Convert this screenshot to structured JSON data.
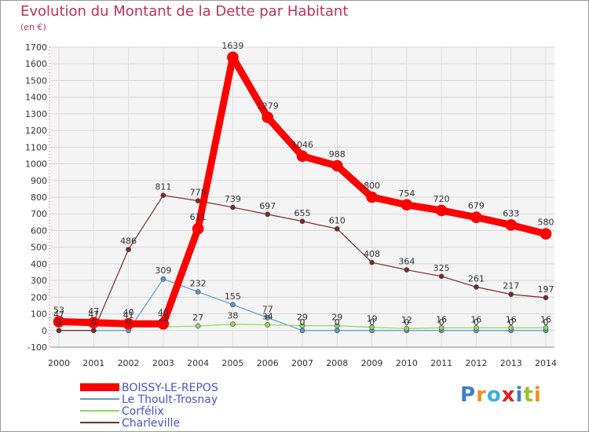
{
  "title": "Evolution du Montant de la Dette par Habitant",
  "subtitle": "(en €)",
  "logo": {
    "letters": [
      "P",
      "r",
      "o",
      "x",
      "i",
      "t",
      "i"
    ],
    "colors": [
      "#3a7fd0",
      "#f09020",
      "#3ab0e0",
      "#e02020",
      "#3a7fd0",
      "#a0c030",
      "#f09020"
    ]
  },
  "chart_data": {
    "type": "line",
    "title": "Evolution du Montant de la Dette par Habitant",
    "ylabel": "(en €)",
    "xlabel": "",
    "ylim": [
      -100,
      1700
    ],
    "y_ticks": [
      -100,
      0,
      100,
      200,
      300,
      400,
      500,
      600,
      700,
      800,
      900,
      1000,
      1100,
      1200,
      1300,
      1400,
      1500,
      1600,
      1700
    ],
    "grid": true,
    "legend_position": "bottom-left",
    "categories": [
      "2000",
      "2001",
      "2002",
      "2003",
      "2004",
      "2005",
      "2006",
      "2007",
      "2008",
      "2009",
      "2010",
      "2011",
      "2012",
      "2013",
      "2014"
    ],
    "series": [
      {
        "name": "Le Thoult-Trosnay",
        "color": "#5a9ad0",
        "width": 1.2,
        "marker_r": 3,
        "values": [
          0,
          0,
          0,
          309,
          232,
          155,
          77,
          0,
          0,
          0,
          0,
          0,
          0,
          0,
          0
        ],
        "labels": [
          "0",
          "0",
          "0",
          "309",
          "232",
          "155",
          "77",
          "0",
          "0",
          "0",
          "0",
          "0",
          "0",
          "0",
          "0"
        ]
      },
      {
        "name": "Corfélix",
        "color": "#8fd95a",
        "width": 1.2,
        "marker_r": 3,
        "values": [
          47,
          47,
          41,
          22,
          27,
          38,
          34,
          29,
          29,
          19,
          12,
          16,
          16,
          16,
          16
        ],
        "labels": [
          "47",
          "47",
          "41",
          "22",
          "27",
          "38",
          "34",
          "29",
          "29",
          "19",
          "12",
          "16",
          "16",
          "16",
          "16"
        ]
      },
      {
        "name": "Charleville",
        "color": "#7a2a2a",
        "width": 1.2,
        "marker_r": 3,
        "values": [
          0,
          0,
          486,
          811,
          778,
          739,
          697,
          655,
          610,
          408,
          364,
          325,
          261,
          217,
          197
        ],
        "labels": [
          "0",
          "0",
          "486",
          "811",
          "778",
          "739",
          "697",
          "655",
          "610",
          "408",
          "364",
          "325",
          "261",
          "217",
          "197"
        ]
      },
      {
        "name": "BOISSY-LE-REPOS",
        "color": "#ff0000",
        "width": 9,
        "marker_r": 7,
        "values": [
          53,
          47,
          40,
          40,
          611,
          1639,
          1279,
          1046,
          988,
          800,
          754,
          720,
          679,
          633,
          580
        ],
        "labels": [
          "53",
          "47",
          "40",
          "40",
          "611",
          "1639",
          "1279",
          "1046",
          "988",
          "800",
          "754",
          "720",
          "679",
          "633",
          "580"
        ]
      }
    ]
  }
}
